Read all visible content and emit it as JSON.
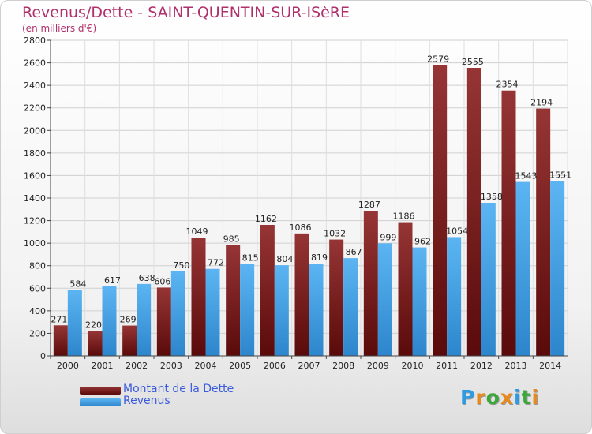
{
  "title": "Revenus/Dette - SAINT-QUENTIN-SUR-ISèRE",
  "subtitle": "(en milliers d'€)",
  "colors": {
    "dette": "#7a1a1a",
    "revenus": "#4aa3e8",
    "title": "#b0306b",
    "legend_text": "#3b5bdb"
  },
  "legend": [
    {
      "label": "Montant de la Dette",
      "color": "#7a1a1a"
    },
    {
      "label": "Revenus",
      "color": "#4aa3e8"
    }
  ],
  "logo": {
    "letters": [
      "P",
      "r",
      "o",
      "x",
      "i",
      "t",
      "i"
    ],
    "colors": [
      "#2e9be0",
      "#e8891d",
      "#3aa838",
      "#e8891d",
      "#2e9be0",
      "#3aa838",
      "#e8891d"
    ]
  },
  "chart_data": {
    "type": "bar",
    "title": "Revenus/Dette - SAINT-QUENTIN-SUR-ISèRE",
    "subtitle": "(en milliers d'€)",
    "categories": [
      "2000",
      "2001",
      "2002",
      "2003",
      "2004",
      "2005",
      "2006",
      "2007",
      "2008",
      "2009",
      "2010",
      "2011",
      "2012",
      "2013",
      "2014"
    ],
    "series": [
      {
        "name": "Montant de la Dette",
        "color": "#7a1a1a",
        "values": [
          271,
          220,
          269,
          606,
          1049,
          985,
          1162,
          1086,
          1032,
          1287,
          1186,
          2579,
          2555,
          2354,
          2194
        ]
      },
      {
        "name": "Revenus",
        "color": "#4aa3e8",
        "values": [
          584,
          617,
          638,
          750,
          772,
          815,
          804,
          819,
          867,
          999,
          962,
          1054,
          1358,
          1543,
          1551
        ]
      }
    ],
    "ylim": [
      0,
      2800
    ],
    "yticks": [
      0,
      200,
      400,
      600,
      800,
      1000,
      1200,
      1400,
      1600,
      1800,
      2000,
      2200,
      2400,
      2600,
      2800
    ],
    "grid": true,
    "legend_position": "bottom-left"
  }
}
